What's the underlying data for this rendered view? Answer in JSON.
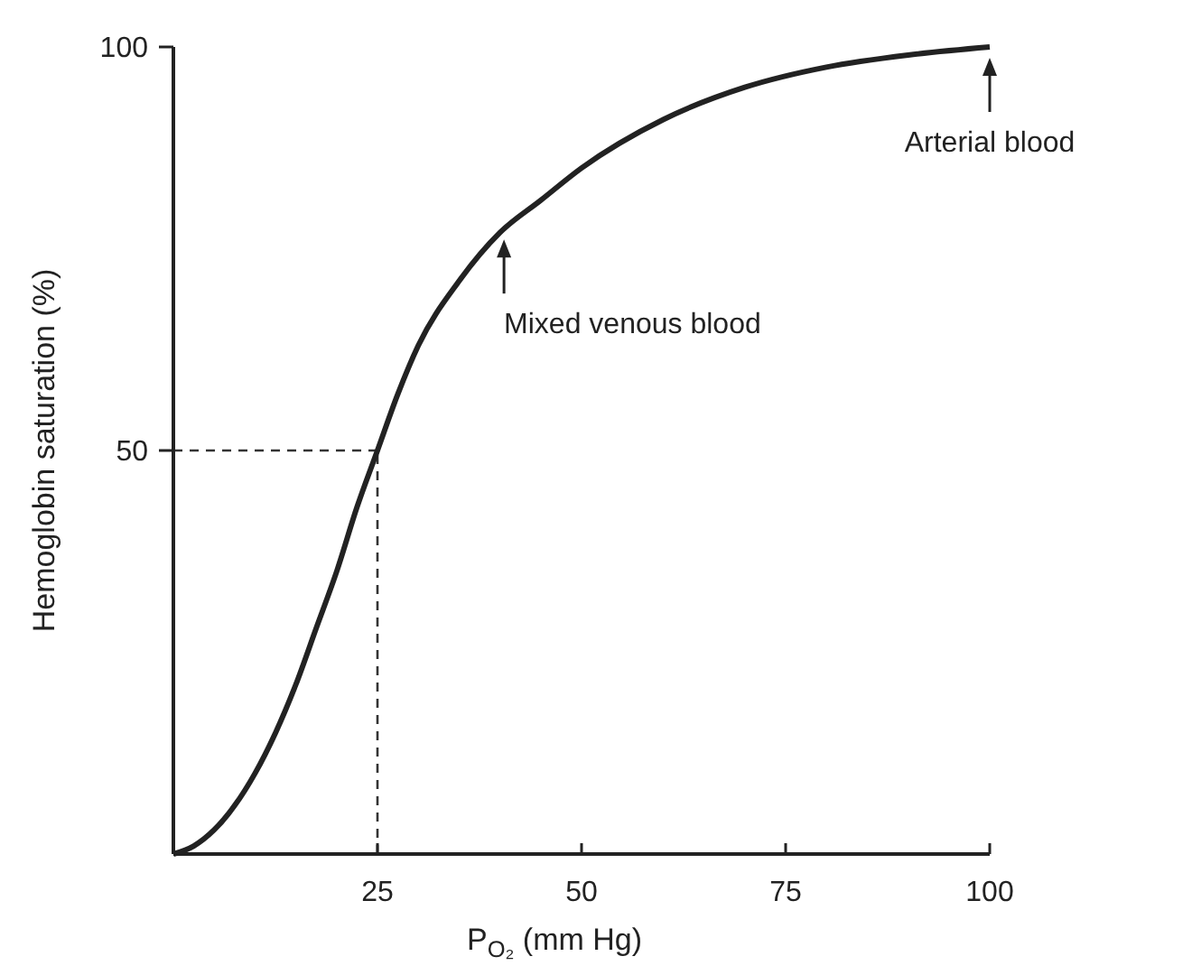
{
  "chart_data": {
    "type": "line",
    "xlabel": "P$_{O₂}$ (mm Hg)",
    "ylabel": "Hemoglobin saturation (%)",
    "x": [
      0,
      2.5,
      5,
      7.5,
      10,
      12.5,
      15,
      17.5,
      20,
      22.5,
      25,
      27.5,
      30,
      35,
      40,
      45,
      50,
      60,
      70,
      80,
      90,
      100
    ],
    "series": [
      {
        "color": "#222222",
        "values": [
          0,
          1,
          3,
          6,
          10,
          15,
          21,
          28,
          35,
          43,
          50,
          57,
          63,
          71,
          77,
          81,
          85,
          91,
          95,
          97.5,
          99,
          100
        ]
      }
    ],
    "xlim": [
      0,
      100
    ],
    "ylim": [
      0,
      100
    ],
    "xticks": [
      25,
      50,
      75,
      100
    ],
    "yticks": [
      50,
      100
    ],
    "ref_lines": [
      {
        "axis": "x",
        "value": 25,
        "line_style": "dashed"
      },
      {
        "axis": "y",
        "value": 50,
        "line_style": "dashed"
      }
    ],
    "annotations": [
      {
        "text": "Mixed venous blood",
        "x": 40.5,
        "y": 77.5
      },
      {
        "text": "Arterial blood",
        "x": 100,
        "y": 100
      }
    ],
    "line_style": "solid"
  }
}
